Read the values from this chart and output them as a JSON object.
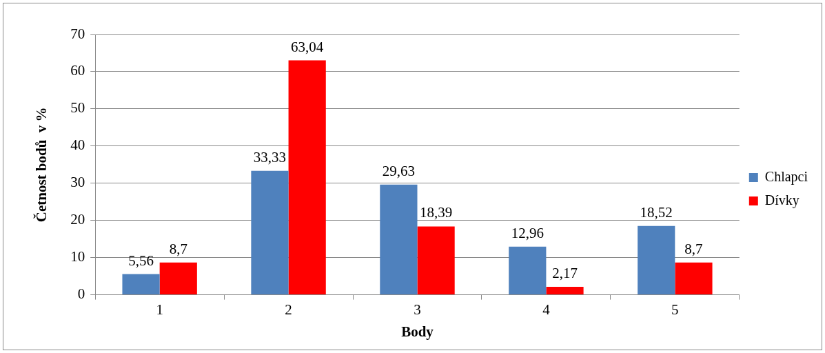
{
  "chart_data": {
    "type": "bar",
    "xlabel": "Body",
    "ylabel": "Četnost bodů  v %",
    "categories": [
      "1",
      "2",
      "3",
      "4",
      "5"
    ],
    "series": [
      {
        "name": "Chlapci",
        "color": "#4f81bd",
        "values": [
          5.56,
          33.33,
          29.63,
          12.96,
          18.52
        ],
        "value_labels": [
          "5,56",
          "33,33",
          "29,63",
          "12,96",
          "18,52"
        ]
      },
      {
        "name": "Dívky",
        "color": "#ff0000",
        "values": [
          8.7,
          63.04,
          18.39,
          2.17,
          8.7
        ],
        "value_labels": [
          "8,7",
          "63,04",
          "18,39",
          "2,17",
          "8,7"
        ]
      }
    ],
    "ylim": [
      0,
      70
    ],
    "yticks": [
      0,
      10,
      20,
      30,
      40,
      50,
      60,
      70
    ],
    "grid": "y",
    "legend": "right"
  }
}
